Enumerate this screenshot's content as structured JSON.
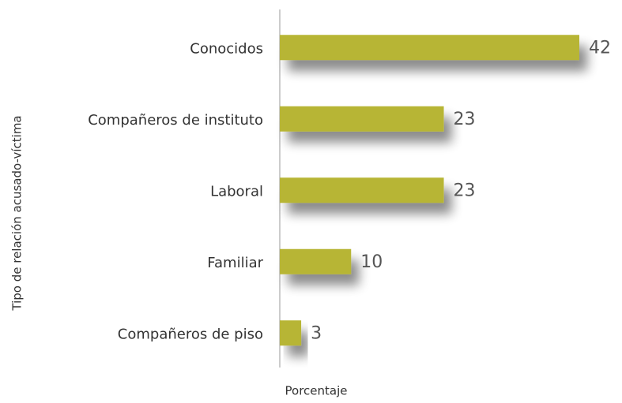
{
  "chart_data": {
    "type": "barh",
    "categories": [
      "Conocidos",
      "Compañeros de instituto",
      "Laboral",
      "Familiar",
      "Compañeros de piso"
    ],
    "values": [
      42,
      23,
      23,
      10,
      3
    ],
    "color": "#b7b534",
    "ylabel": "Tipo de relación acusado-víctima",
    "xlabel": "Porcentaje"
  }
}
